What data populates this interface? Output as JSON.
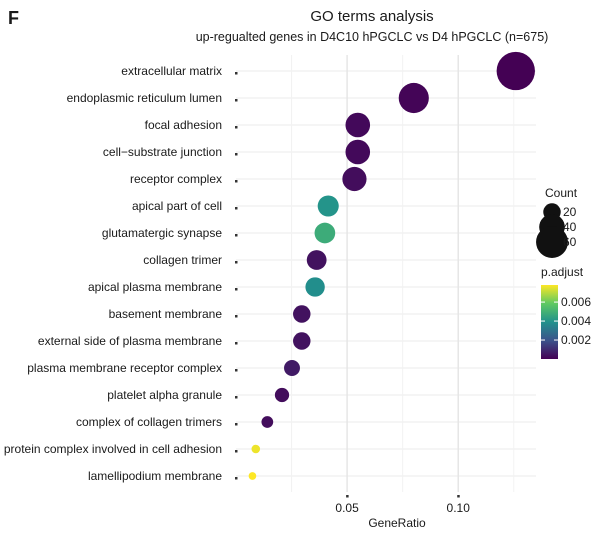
{
  "panel_label": "F",
  "chart_data": {
    "type": "scatter",
    "title": "GO terms analysis",
    "subtitle": "up-regualted genes in D4C10 hPGCLC vs D4 hPGCLC (n=675)",
    "xlabel": "GeneRatio",
    "ylabel": "",
    "xlim": [
      0.0,
      0.135
    ],
    "x_ticks": [
      0.05,
      0.1
    ],
    "x_tick_labels": [
      "0.05",
      "0.10"
    ],
    "grid": true,
    "categories": [
      "extracellular matrix",
      "endoplasmic reticulum lumen",
      "focal adhesion",
      "cell−substrate junction",
      "receptor complex",
      "apical part of cell",
      "glutamatergic synapse",
      "collagen trimer",
      "apical plasma membrane",
      "basement membrane",
      "external side of plasma membrane",
      "plasma membrane receptor complex",
      "platelet alpha granule",
      "complex of collagen trimers",
      "protein complex involved in cell adhesion",
      "lamellipodium membrane"
    ],
    "gene_ratio": [
      0.1259,
      0.08,
      0.0548,
      0.0548,
      0.0533,
      0.0415,
      0.04,
      0.0363,
      0.0356,
      0.0296,
      0.0296,
      0.0252,
      0.0207,
      0.0141,
      0.0089,
      0.0074
    ],
    "count": [
      85,
      54,
      37,
      37,
      36,
      28,
      27,
      25,
      24,
      20,
      20,
      17,
      14,
      10,
      6,
      5
    ],
    "p_adjust": [
      0.0,
      0.0001,
      0.0002,
      0.0002,
      0.0003,
      0.004,
      0.0048,
      0.0004,
      0.0038,
      0.0004,
      0.0004,
      0.0006,
      0.0003,
      0.0003,
      0.0076,
      0.0078
    ],
    "legend_count": {
      "title": "Count",
      "values": [
        20,
        40,
        60
      ],
      "labels": [
        "20",
        "40",
        "60"
      ]
    },
    "legend_color": {
      "title": "p.adjust",
      "range": [
        0.0,
        0.0078
      ],
      "ticks": [
        0.002,
        0.004,
        0.006
      ],
      "tick_labels": [
        "0.002",
        "0.004",
        "0.006"
      ],
      "colormap": "viridis"
    },
    "legend_position": "right"
  }
}
